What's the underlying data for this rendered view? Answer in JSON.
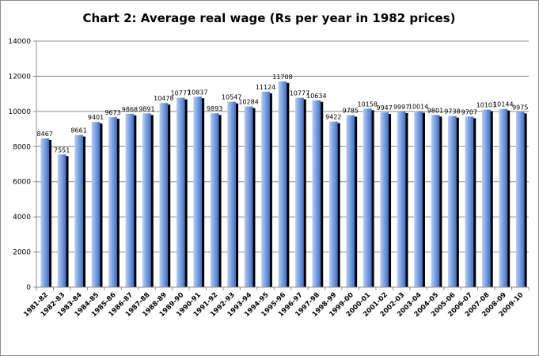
{
  "chart_data": {
    "type": "bar",
    "title": "Chart 2: Average real wage (Rs per year in 1982 prices)",
    "xlabel": "",
    "ylabel": "",
    "ylim": [
      0,
      14000
    ],
    "yticks": [
      0,
      2000,
      4000,
      6000,
      8000,
      10000,
      12000,
      14000
    ],
    "grid": true,
    "legend": "none",
    "categories": [
      "1981-82",
      "1982-83",
      "1983-84",
      "1984-85",
      "1985-86",
      "1986-87",
      "1987-88",
      "1988-89",
      "1989-90",
      "1990-91",
      "1991-92",
      "1992-93",
      "1993-94",
      "1994-95",
      "1995-96",
      "1996-97",
      "1997-98",
      "1998-99",
      "1999-00",
      "2000-01",
      "2001-02",
      "2002-03",
      "2003-04",
      "2004-05",
      "2005-06",
      "2006-07",
      "2007-08",
      "2008-09",
      "2009-10"
    ],
    "values": [
      8467,
      7551,
      8661,
      9401,
      9673,
      9868,
      9891,
      10478,
      10777,
      10837,
      9893,
      10547,
      10284,
      11124,
      11708,
      10777,
      10634,
      9422,
      9785,
      10158,
      9947,
      9997,
      10014,
      9801,
      9738,
      9707,
      10103,
      10144,
      9975
    ],
    "colors": {
      "bar_light": "#b7cdf5",
      "bar_dark": "#3f70c4",
      "shadow": "#000000",
      "grid": "#8c8c8c"
    }
  }
}
